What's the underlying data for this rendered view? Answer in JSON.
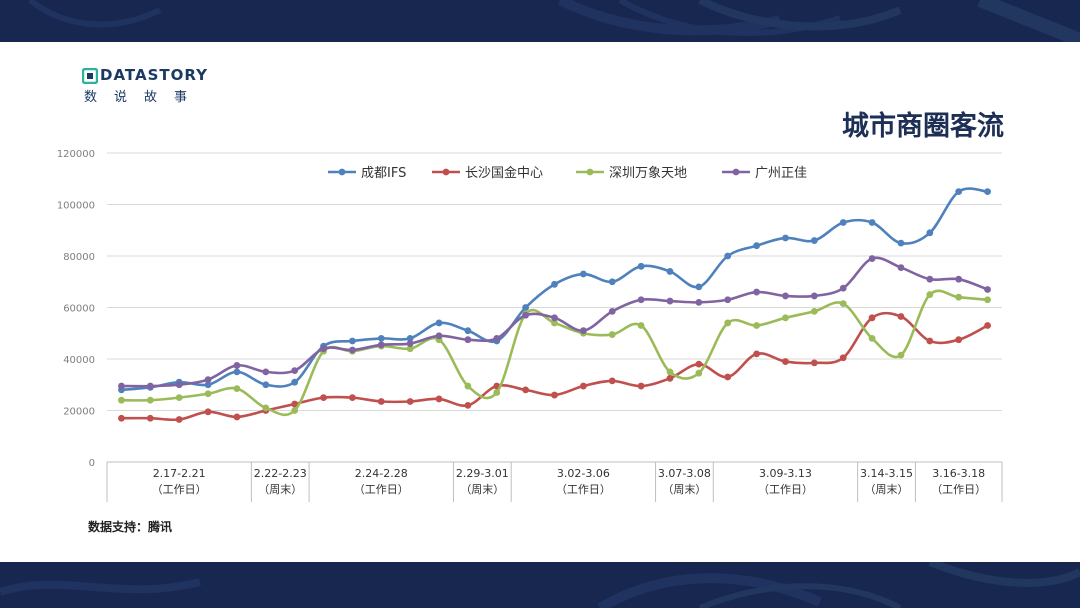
{
  "page": {
    "title": "城市商圈客流",
    "source": "数据支持：腾讯",
    "logo": {
      "name": "DATASTORY",
      "sub": "数说故事"
    },
    "colors": {
      "navy": "#17274f",
      "title": "#1e2f55"
    }
  },
  "chart_data": {
    "type": "line",
    "ylim": [
      0,
      120000
    ],
    "yticks": [
      0,
      20000,
      40000,
      60000,
      80000,
      100000,
      120000
    ],
    "grid": true,
    "legend_position": "top",
    "period_groups": [
      {
        "label": "2.17-2.21",
        "sub": "（工作日）",
        "start": 0,
        "count": 5
      },
      {
        "label": "2.22-2.23",
        "sub": "（周末）",
        "start": 5,
        "count": 2
      },
      {
        "label": "2.24-2.28",
        "sub": "（工作日）",
        "start": 7,
        "count": 5
      },
      {
        "label": "2.29-3.01",
        "sub": "（周末）",
        "start": 12,
        "count": 2
      },
      {
        "label": "3.02-3.06",
        "sub": "（工作日）",
        "start": 14,
        "count": 5
      },
      {
        "label": "3.07-3.08",
        "sub": "（周末）",
        "start": 19,
        "count": 2
      },
      {
        "label": "3.09-3.13",
        "sub": "（工作日）",
        "start": 21,
        "count": 5
      },
      {
        "label": "3.14-3.15",
        "sub": "（周末）",
        "start": 26,
        "count": 2
      },
      {
        "label": "3.16-3.18",
        "sub": "（工作日）",
        "start": 28,
        "count": 3
      }
    ],
    "series": [
      {
        "name": "成都IFS",
        "color": "#4f81bd",
        "values": [
          28000,
          29000,
          31000,
          30000,
          35000,
          30000,
          31000,
          45000,
          47000,
          48000,
          48000,
          54000,
          51000,
          47000,
          60000,
          69000,
          73000,
          70000,
          76000,
          74000,
          68000,
          80000,
          84000,
          87000,
          86000,
          93000,
          93000,
          85000,
          89000,
          105000,
          105000
        ]
      },
      {
        "name": "长沙国金中心",
        "color": "#c0504d",
        "values": [
          17000,
          17000,
          16500,
          19500,
          17500,
          20000,
          22500,
          25000,
          25000,
          23500,
          23500,
          24500,
          22000,
          29500,
          28000,
          26000,
          29500,
          31500,
          29500,
          32500,
          38000,
          33000,
          42000,
          39000,
          38500,
          40500,
          56000,
          56500,
          47000,
          47500,
          53000
        ]
      },
      {
        "name": "深圳万象天地",
        "color": "#9bbb59",
        "values": [
          24000,
          24000,
          25000,
          26500,
          28500,
          21000,
          20000,
          43000,
          43000,
          45000,
          44000,
          47500,
          29500,
          27000,
          57500,
          54000,
          50000,
          49500,
          53000,
          35000,
          34500,
          54000,
          53000,
          56000,
          58500,
          61500,
          48000,
          41500,
          65000,
          64000,
          63000
        ]
      },
      {
        "name": "广州正佳",
        "color": "#8064a2",
        "values": [
          29500,
          29500,
          30000,
          32000,
          37500,
          35000,
          35500,
          44000,
          43500,
          45500,
          46000,
          49000,
          47500,
          48000,
          57000,
          56000,
          51000,
          58500,
          63000,
          62500,
          62000,
          63000,
          66000,
          64500,
          64500,
          67500,
          79000,
          75500,
          71000,
          71000,
          67000
        ]
      }
    ]
  }
}
